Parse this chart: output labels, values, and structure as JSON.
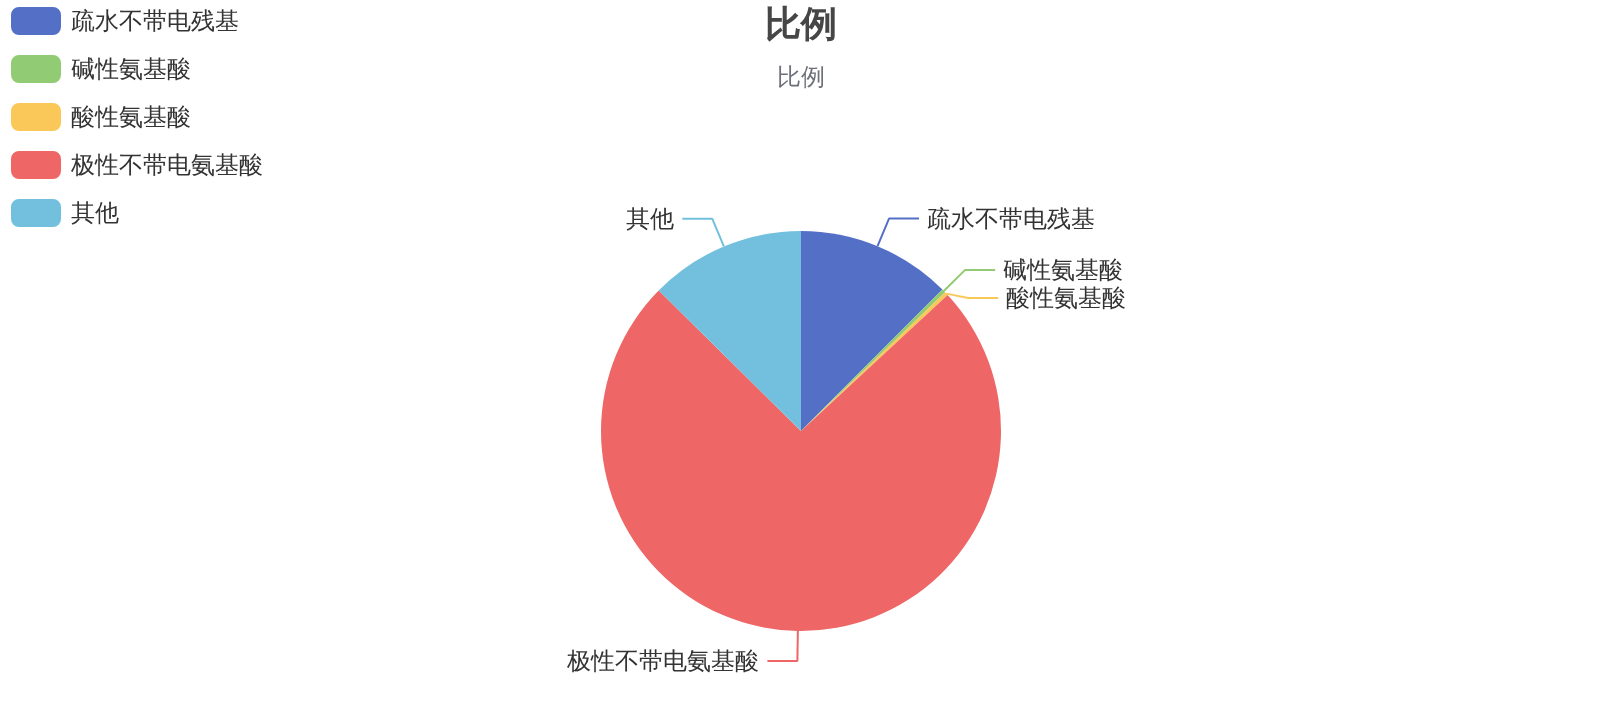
{
  "chart_data": {
    "type": "pie",
    "title": "比例",
    "subtitle": "比例",
    "categories": [
      "疏水不带电残基",
      "碱性氨基酸",
      "酸性氨基酸",
      "极性不带电氨基酸",
      "其他"
    ],
    "values": [
      12.5,
      0.3,
      0.3,
      74.3,
      12.6
    ],
    "colors": [
      "#5470c6",
      "#91cc75",
      "#fac858",
      "#ee6666",
      "#73c0de"
    ],
    "legend": "top left"
  }
}
